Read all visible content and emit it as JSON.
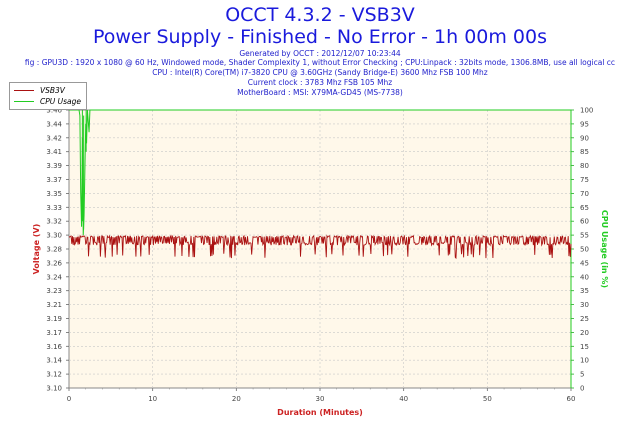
{
  "header": {
    "title": "OCCT 4.3.2 - VSB3V",
    "subtitle": "Power Supply - Finished - No Error - 1h 00m 00s"
  },
  "info_lines": [
    "Generated by OCCT : 2012/12/07 10:23:44",
    "fig : GPU3D : 1920 x 1080 @ 60 Hz, Windowed mode, Shader Complexity 1, without Error Checking ; CPU:Linpack : 32bits mode, 1306.8MB, use all logical cc",
    "CPU : Intel(R) Core(TM) i7-3820 CPU @ 3.60GHz (Sandy Bridge-E) 3600 Mhz FSB 100 Mhz",
    "Current clock : 3783 Mhz FSB 105 Mhz",
    "MotherBoard : MSI: X79MA-GD45 (MS-7738)"
  ],
  "colors": {
    "vsb3v": "#aa1111",
    "cpu": "#22cc22",
    "plot_bg": "#fff8ea",
    "grid": "#c8c8c8",
    "axis_text": "#444444",
    "xlabel": "#cc2222",
    "ylabel_left": "#cc2222",
    "ylabel_right": "#22cc22"
  },
  "chart_data": {
    "type": "line",
    "title": "OCCT 4.3.2 - VSB3V",
    "xlabel": "Duration (Minutes)",
    "ylabel": "Voltage (V)",
    "y2label": "CPU Usage (in %)",
    "xlim": [
      0,
      60
    ],
    "ylim": [
      3.1,
      3.46
    ],
    "y2lim": [
      0,
      100
    ],
    "xticks": [
      0,
      10,
      20,
      30,
      40,
      50,
      60
    ],
    "yticks": [
      "3.10",
      "3.12",
      "3.14",
      "3.16",
      "3.17",
      "3.19",
      "3.21",
      "3.23",
      "3.24",
      "3.26",
      "3.28",
      "3.30",
      "3.32",
      "3.33",
      "3.35",
      "3.37",
      "3.39",
      "3.41",
      "3.42",
      "3.44",
      "3.46"
    ],
    "y2ticks": [
      0,
      5,
      10,
      15,
      20,
      25,
      30,
      35,
      40,
      45,
      50,
      55,
      60,
      65,
      70,
      75,
      80,
      85,
      90,
      95,
      100
    ],
    "legend": [
      "VSB3V",
      "CPU Usage"
    ],
    "legend_position": "top-left",
    "series": [
      {
        "name": "VSB3V",
        "axis": "left",
        "typical_values": [
          3.285,
          3.295
        ],
        "spike_high": 3.297,
        "dip_low": 3.268,
        "sample_count": 720,
        "description_values": [
          3.29,
          3.29,
          3.29,
          3.28,
          3.29,
          3.29,
          3.29,
          3.29,
          3.27,
          3.29,
          3.29,
          3.29,
          3.29,
          3.29,
          3.28,
          3.29,
          3.29,
          3.29,
          3.27,
          3.29
        ]
      },
      {
        "name": "CPU Usage",
        "axis": "right",
        "x": [
          0,
          1.2,
          1.3,
          1.4,
          1.5,
          1.6,
          1.7,
          1.8,
          2.0,
          2.1,
          2.2,
          2.4,
          2.5,
          60
        ],
        "values": [
          100,
          100,
          98,
          70,
          58,
          90,
          55,
          62,
          95,
          88,
          100,
          92,
          100,
          100
        ]
      }
    ]
  }
}
